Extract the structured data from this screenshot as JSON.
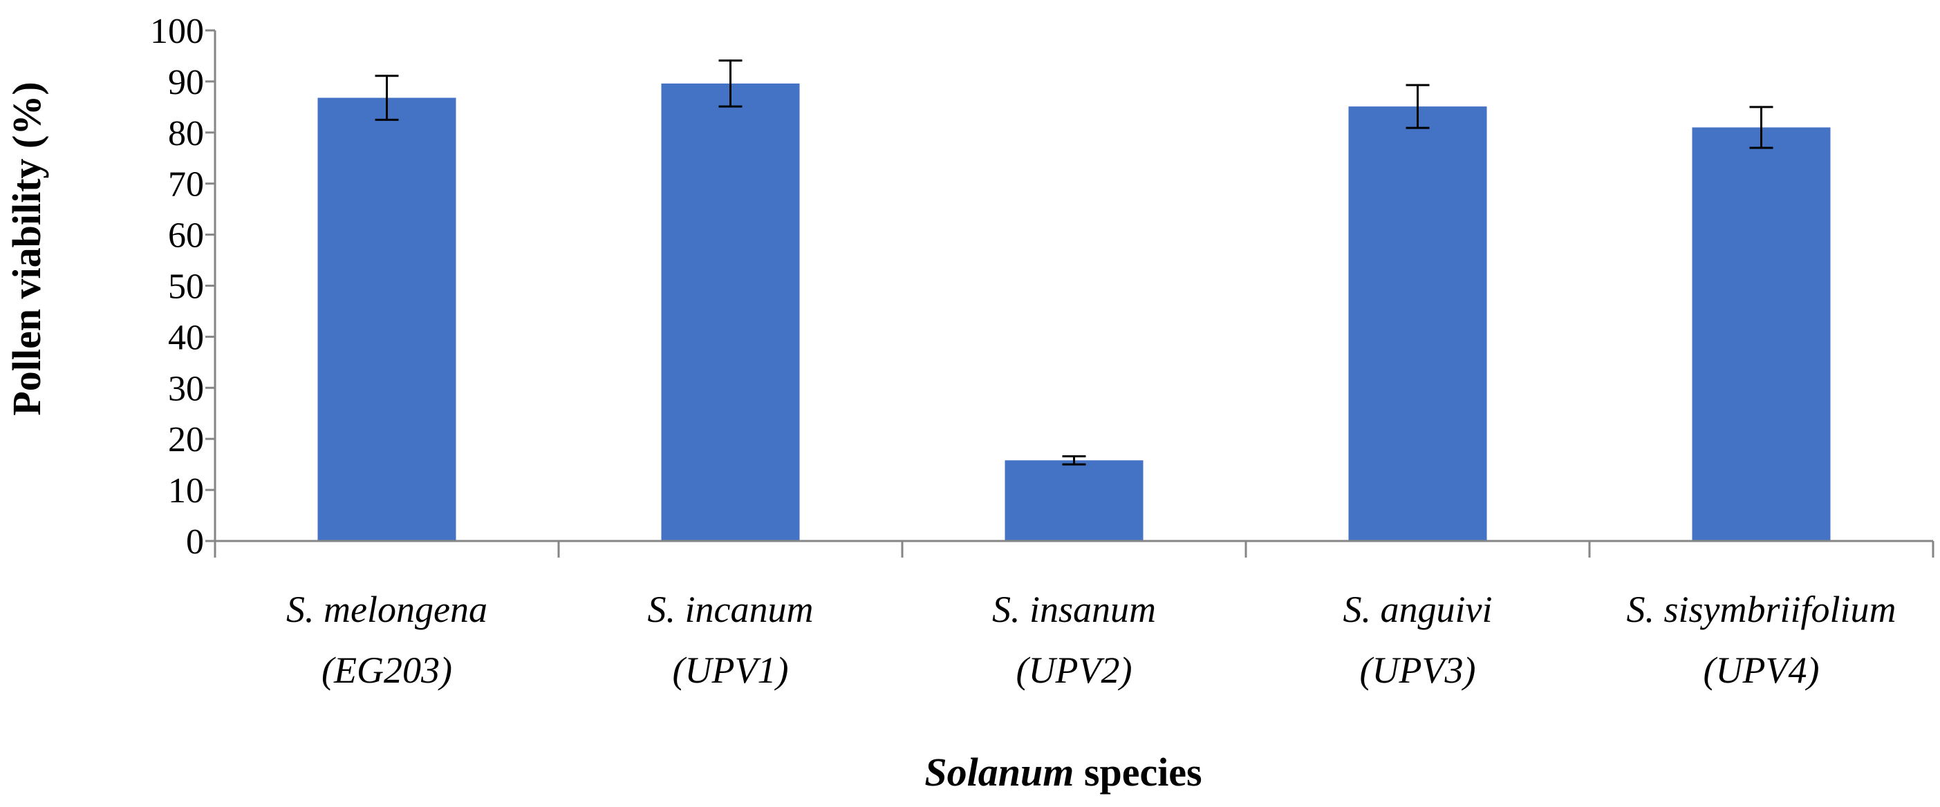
{
  "chart_data": {
    "type": "bar",
    "title": "",
    "ylabel": "Pollen viability (%)",
    "xlabel_italic": "Solanum",
    "xlabel_rest": " species",
    "ylim": [
      0,
      100
    ],
    "yticks": [
      0,
      10,
      20,
      30,
      40,
      50,
      60,
      70,
      80,
      90,
      100
    ],
    "grid": false,
    "bar_color": "#4472C4",
    "categories": [
      {
        "line1": "S. melongena",
        "line2": "(EG203)"
      },
      {
        "line1": "S. incanum",
        "line2": "(UPV1)"
      },
      {
        "line1": "S. insanum",
        "line2": "(UPV2)"
      },
      {
        "line1": "S. anguivi",
        "line2": "(UPV3)"
      },
      {
        "line1": "S. sisymbriifolium",
        "line2": "(UPV4)"
      }
    ],
    "values": [
      86.8,
      89.6,
      15.8,
      85.1,
      81.0
    ],
    "errors": [
      4.3,
      4.5,
      0.8,
      4.2,
      4.0
    ]
  }
}
